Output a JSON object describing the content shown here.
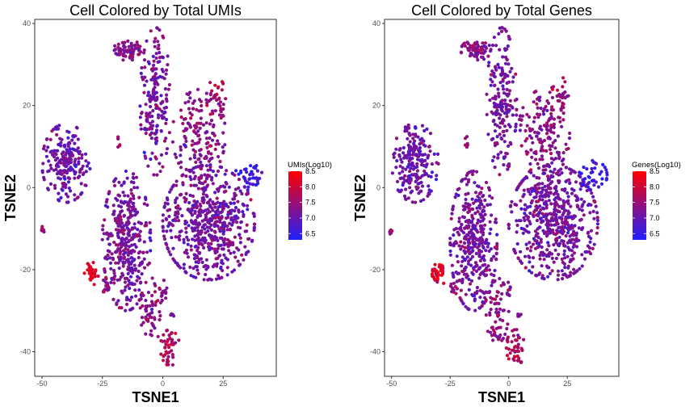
{
  "chart_data": [
    {
      "type": "scatter",
      "title": "Cell Colored by Total UMIs",
      "xlabel": "TSNE1",
      "ylabel": "TSNE2",
      "xlim": [
        -53,
        47
      ],
      "ylim": [
        -46,
        41
      ],
      "x_ticks": [
        -50,
        -25,
        0,
        25
      ],
      "y_ticks": [
        40,
        20,
        0,
        -20,
        -40
      ],
      "grid": false,
      "legend": {
        "title": "UMIs(Log10)",
        "placement": "right",
        "min": 6.3,
        "max": 8.5,
        "ticks": [
          8.5,
          8.0,
          7.5,
          7.0,
          6.5
        ],
        "low_color": "#1f1fff",
        "high_color": "#ff0000"
      },
      "clusters": [
        {
          "name": "top-small",
          "cx": -14,
          "cy": 33.5,
          "sx": 3.2,
          "sy": 1.3,
          "n": 70,
          "mean": 7.3
        },
        {
          "name": "top-column",
          "cx": -3,
          "cy": 21,
          "sx": 3.2,
          "sy": 9,
          "n": 190,
          "mean": 7.15
        },
        {
          "name": "upper-right",
          "cx": 15,
          "cy": 13,
          "sx": 5.5,
          "sy": 5.5,
          "n": 160,
          "mean": 7.35
        },
        {
          "name": "upper-right-arm",
          "cx": 22,
          "cy": 22,
          "sx": 2,
          "sy": 2.5,
          "n": 30,
          "mean": 7.6
        },
        {
          "name": "left-block",
          "cx": -40,
          "cy": 6,
          "sx": 5,
          "sy": 4.8,
          "n": 210,
          "mean": 7.05
        },
        {
          "name": "right-large",
          "cx": 19,
          "cy": -8.5,
          "sx": 9.5,
          "sy": 7,
          "n": 560,
          "mean": 7.15
        },
        {
          "name": "right-tail",
          "cx": 36,
          "cy": 3,
          "sx": 3,
          "sy": 1.8,
          "n": 40,
          "mean": 6.6
        },
        {
          "name": "lower-middle",
          "cx": -15,
          "cy": -13,
          "sx": 5,
          "sy": 8.5,
          "n": 380,
          "mean": 7.15
        },
        {
          "name": "lower-tail",
          "cx": -5,
          "cy": -30,
          "sx": 2.5,
          "sy": 4,
          "n": 60,
          "mean": 7.35
        },
        {
          "name": "bottom-tail",
          "cx": 3,
          "cy": -39,
          "sx": 2,
          "sy": 2.2,
          "n": 45,
          "mean": 7.7
        },
        {
          "name": "red-small",
          "cx": -29.5,
          "cy": -21,
          "sx": 1.6,
          "sy": 1.4,
          "n": 35,
          "mean": 8.2
        },
        {
          "name": "small-left",
          "cx": -50,
          "cy": -10.5,
          "sx": 0.5,
          "sy": 0.5,
          "n": 6,
          "mean": 7.4
        },
        {
          "name": "small-mid",
          "cx": -24,
          "cy": -24.5,
          "sx": 1,
          "sy": 1,
          "n": 12,
          "mean": 7.4
        },
        {
          "name": "small-center",
          "cx": 0.5,
          "cy": -25,
          "sx": 0.6,
          "sy": 1.2,
          "n": 10,
          "mean": 7.3
        },
        {
          "name": "small-right",
          "cx": 4,
          "cy": -31,
          "sx": 0.6,
          "sy": 0.3,
          "n": 5,
          "mean": 7.2
        },
        {
          "name": "small-upper",
          "cx": -18,
          "cy": 11.5,
          "sx": 0.5,
          "sy": 1.2,
          "n": 6,
          "mean": 7.6
        }
      ]
    },
    {
      "type": "scatter",
      "title": "Cell Colored by Total Genes",
      "xlabel": "TSNE1",
      "ylabel": "TSNE2",
      "xlim": [
        -53,
        47
      ],
      "ylim": [
        -46,
        41
      ],
      "x_ticks": [
        -50,
        -25,
        0,
        25
      ],
      "y_ticks": [
        40,
        20,
        0,
        -20,
        -40
      ],
      "grid": false,
      "legend": {
        "title": "Genes(Log10)",
        "placement": "right",
        "min": 6.3,
        "max": 8.5,
        "ticks": [
          8.5,
          8.0,
          7.5,
          7.0,
          6.5
        ],
        "low_color": "#1f1fff",
        "high_color": "#ff0000"
      },
      "clusters": [
        {
          "name": "top-small",
          "cx": -14,
          "cy": 33.5,
          "sx": 3.2,
          "sy": 1.3,
          "n": 70,
          "mean": 7.3
        },
        {
          "name": "top-column",
          "cx": -3,
          "cy": 21,
          "sx": 3.2,
          "sy": 9,
          "n": 190,
          "mean": 7.15
        },
        {
          "name": "upper-right",
          "cx": 15,
          "cy": 13,
          "sx": 5.5,
          "sy": 5.5,
          "n": 160,
          "mean": 7.35
        },
        {
          "name": "upper-right-arm",
          "cx": 22,
          "cy": 22,
          "sx": 2,
          "sy": 2.5,
          "n": 30,
          "mean": 7.6
        },
        {
          "name": "left-block",
          "cx": -40,
          "cy": 6,
          "sx": 5,
          "sy": 4.8,
          "n": 210,
          "mean": 7.05
        },
        {
          "name": "right-large",
          "cx": 19,
          "cy": -8.5,
          "sx": 9.5,
          "sy": 7,
          "n": 560,
          "mean": 7.15
        },
        {
          "name": "right-tail",
          "cx": 36,
          "cy": 3,
          "sx": 3,
          "sy": 1.8,
          "n": 40,
          "mean": 6.6
        },
        {
          "name": "lower-middle",
          "cx": -15,
          "cy": -13,
          "sx": 5,
          "sy": 8.5,
          "n": 380,
          "mean": 7.15
        },
        {
          "name": "lower-tail",
          "cx": -5,
          "cy": -30,
          "sx": 2.5,
          "sy": 4,
          "n": 60,
          "mean": 7.35
        },
        {
          "name": "bottom-tail",
          "cx": 3,
          "cy": -39,
          "sx": 2,
          "sy": 2.2,
          "n": 45,
          "mean": 7.7
        },
        {
          "name": "red-small",
          "cx": -29.5,
          "cy": -21,
          "sx": 1.6,
          "sy": 1.4,
          "n": 35,
          "mean": 8.2
        },
        {
          "name": "small-left",
          "cx": -50,
          "cy": -10.5,
          "sx": 0.5,
          "sy": 0.5,
          "n": 6,
          "mean": 7.4
        },
        {
          "name": "small-mid",
          "cx": -24,
          "cy": -24.5,
          "sx": 1,
          "sy": 1,
          "n": 12,
          "mean": 7.4
        },
        {
          "name": "small-center",
          "cx": 0.5,
          "cy": -25,
          "sx": 0.6,
          "sy": 1.2,
          "n": 10,
          "mean": 7.3
        },
        {
          "name": "small-right",
          "cx": 4,
          "cy": -31,
          "sx": 0.6,
          "sy": 0.3,
          "n": 5,
          "mean": 7.2
        },
        {
          "name": "small-upper",
          "cx": -18,
          "cy": 11.5,
          "sx": 0.5,
          "sy": 1.2,
          "n": 6,
          "mean": 7.6
        }
      ]
    }
  ]
}
